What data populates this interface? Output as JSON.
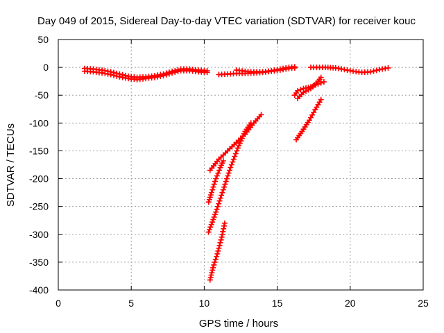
{
  "chart_data": {
    "type": "scatter",
    "title": "Day 049 of 2015, Sidereal Day-to-day VTEC variation (SDTVAR) for receiver kouc",
    "xlabel": "GPS time / hours",
    "ylabel": "SDTVAR / TECUs",
    "xlim": [
      0,
      25
    ],
    "ylim": [
      -400,
      50
    ],
    "xticks": [
      "0",
      "5",
      "10",
      "15",
      "20",
      "25"
    ],
    "yticks": [
      "50",
      "0",
      "-50",
      "-100",
      "-150",
      "-200",
      "-250",
      "-300",
      "-350",
      "-400"
    ],
    "grid": true,
    "colors": {
      "series": "#ff0000"
    },
    "series": [
      {
        "points": [
          [
            1.8,
            -2
          ],
          [
            2.4,
            -3
          ],
          [
            3.0,
            -5
          ],
          [
            3.6,
            -8
          ],
          [
            4.2,
            -12
          ],
          [
            4.8,
            -16
          ],
          [
            5.4,
            -18
          ],
          [
            6.0,
            -17
          ],
          [
            6.6,
            -15
          ],
          [
            7.2,
            -12
          ],
          [
            7.8,
            -7
          ],
          [
            8.4,
            -3
          ],
          [
            9.0,
            -3
          ],
          [
            9.6,
            -5
          ],
          [
            10.2,
            -6
          ]
        ]
      },
      {
        "points": [
          [
            1.8,
            -7
          ],
          [
            2.4,
            -8
          ],
          [
            3.0,
            -10
          ],
          [
            3.6,
            -13
          ],
          [
            4.2,
            -17
          ],
          [
            4.8,
            -20
          ],
          [
            5.4,
            -22
          ],
          [
            6.0,
            -20
          ],
          [
            6.6,
            -18
          ],
          [
            7.2,
            -15
          ],
          [
            7.8,
            -10
          ],
          [
            8.4,
            -6
          ],
          [
            9.0,
            -6
          ],
          [
            9.6,
            -8
          ],
          [
            10.2,
            -9
          ]
        ]
      },
      {
        "points": [
          [
            11.0,
            -13
          ],
          [
            11.6,
            -12
          ],
          [
            12.2,
            -11
          ],
          [
            12.8,
            -11
          ],
          [
            13.4,
            -10
          ],
          [
            14.0,
            -9
          ],
          [
            14.6,
            -7
          ],
          [
            15.2,
            -5
          ],
          [
            15.8,
            -2
          ],
          [
            16.2,
            -1
          ]
        ]
      },
      {
        "points": [
          [
            12.2,
            -5
          ],
          [
            12.8,
            -7
          ],
          [
            13.4,
            -8
          ],
          [
            14.0,
            -8
          ],
          [
            14.6,
            -6
          ],
          [
            15.2,
            -3
          ],
          [
            15.8,
            0
          ],
          [
            16.2,
            1
          ]
        ]
      },
      {
        "points": [
          [
            17.3,
            0
          ],
          [
            18.3,
            0
          ],
          [
            19.0,
            -1
          ],
          [
            19.6,
            -4
          ],
          [
            20.2,
            -7
          ],
          [
            20.8,
            -9
          ],
          [
            21.4,
            -8
          ],
          [
            22.0,
            -4
          ],
          [
            22.6,
            -1
          ]
        ]
      },
      {
        "points": [
          [
            16.2,
            -50
          ],
          [
            16.4,
            -42
          ],
          [
            16.8,
            -38
          ],
          [
            17.3,
            -35
          ],
          [
            17.8,
            -30
          ],
          [
            18.2,
            -26
          ]
        ]
      },
      {
        "points": [
          [
            16.4,
            -56
          ],
          [
            16.8,
            -45
          ],
          [
            17.3,
            -38
          ],
          [
            17.8,
            -25
          ],
          [
            18.0,
            -18
          ]
        ]
      },
      {
        "points": [
          [
            10.4,
            -185
          ],
          [
            11.0,
            -165
          ],
          [
            11.6,
            -150
          ],
          [
            12.2,
            -135
          ],
          [
            12.8,
            -120
          ],
          [
            13.4,
            -100
          ],
          [
            13.9,
            -85
          ]
        ]
      },
      {
        "points": [
          [
            10.3,
            -242
          ],
          [
            10.5,
            -225
          ],
          [
            10.8,
            -200
          ],
          [
            11.1,
            -180
          ],
          [
            11.3,
            -168
          ]
        ]
      },
      {
        "points": [
          [
            10.3,
            -296
          ],
          [
            10.8,
            -260
          ],
          [
            11.3,
            -220
          ],
          [
            11.8,
            -180
          ],
          [
            12.3,
            -145
          ],
          [
            12.8,
            -115
          ],
          [
            13.2,
            -100
          ]
        ]
      },
      {
        "points": [
          [
            10.4,
            -382
          ],
          [
            10.6,
            -360
          ],
          [
            10.9,
            -335
          ],
          [
            11.2,
            -305
          ],
          [
            11.4,
            -280
          ]
        ]
      },
      {
        "points": [
          [
            16.3,
            -130
          ],
          [
            16.7,
            -115
          ],
          [
            17.2,
            -95
          ],
          [
            17.6,
            -76
          ],
          [
            18.0,
            -58
          ]
        ]
      }
    ]
  }
}
